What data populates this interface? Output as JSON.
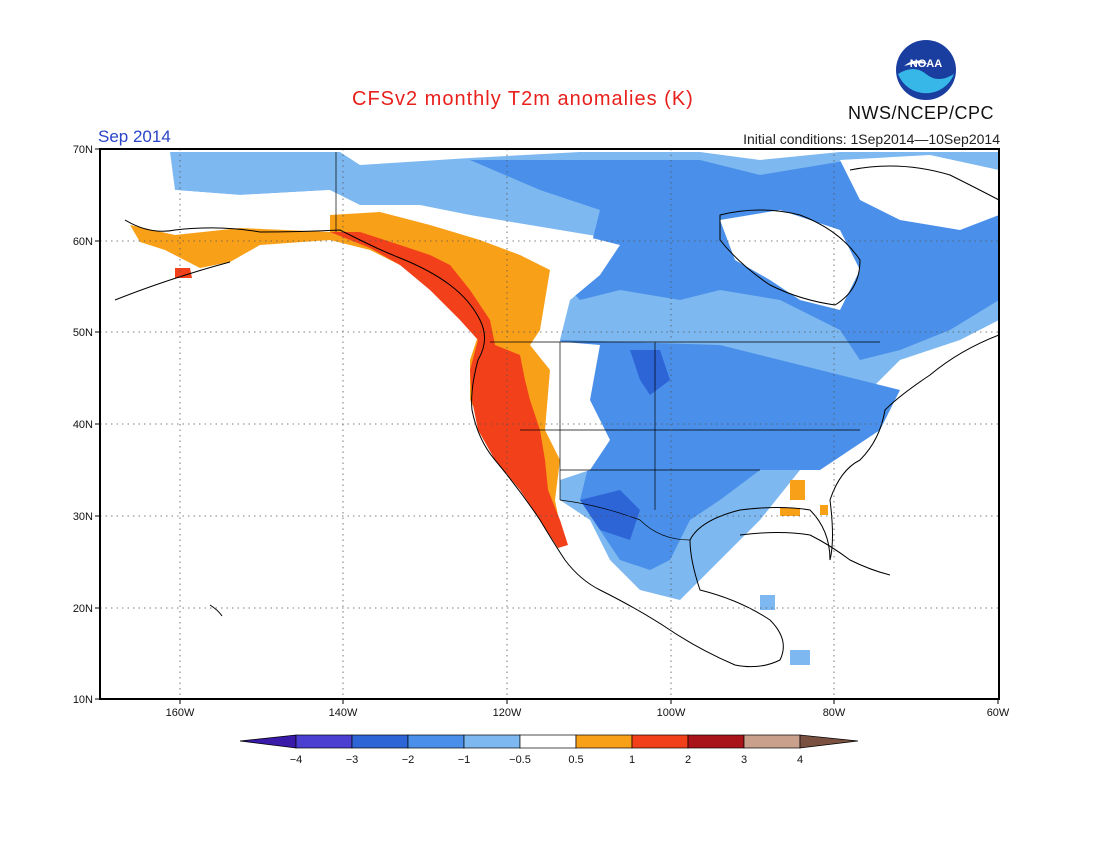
{
  "title": "CFSv2 monthly T2m anomalies (K)",
  "period": "Sep 2014",
  "initial_conditions": "Initial conditions: 1Sep2014—10Sep2014",
  "agency": "NWS/NCEP/CPC",
  "logo_text": "NOAA",
  "map": {
    "lon_labels": [
      "160W",
      "140W",
      "120W",
      "100W",
      "80W",
      "60W"
    ],
    "lat_labels": [
      "70N",
      "60N",
      "50N",
      "40N",
      "30N",
      "20N",
      "10N"
    ]
  },
  "colorbar": {
    "labels": [
      "−4",
      "−3",
      "−2",
      "−1",
      "−0.5",
      "0.5",
      "1",
      "2",
      "3",
      "4"
    ],
    "colors": [
      "#3a1aa8",
      "#4a3fd0",
      "#2d64d6",
      "#4a90ea",
      "#7eb8f0",
      "#ffffff",
      "#f9a019",
      "#f2401a",
      "#a8141a",
      "#c8a08c",
      "#7a5040"
    ]
  },
  "legend_colors": {
    "warm_1": "#f9a019",
    "warm_2": "#f2401a",
    "cool_1": "#7eb8f0",
    "cool_2": "#4a90ea",
    "cool_3": "#2d64d6"
  }
}
